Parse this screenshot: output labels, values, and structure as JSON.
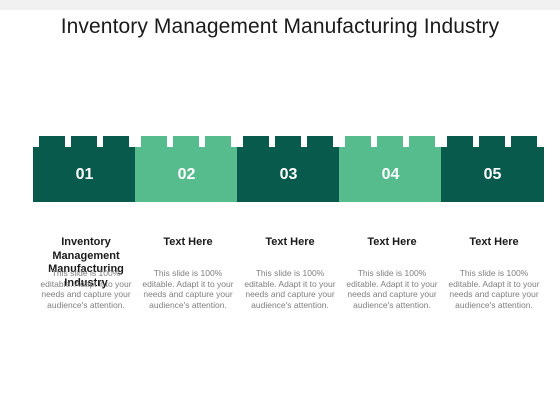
{
  "title": "Inventory Management Manufacturing Industry",
  "colors": {
    "dark": "#075a4c",
    "light": "#56bb8d"
  },
  "steps": [
    {
      "number": "01",
      "heading": "Inventory Management Manufacturing Industry",
      "text": "This slide is 100% editable. Adapt it to your needs and capture your audience's attention."
    },
    {
      "number": "02",
      "heading": "Text Here",
      "text": "This slide is 100% editable. Adapt it to your needs and capture your audience's attention."
    },
    {
      "number": "03",
      "heading": "Text Here",
      "text": "This slide is 100% editable. Adapt it to your needs and capture your audience's attention."
    },
    {
      "number": "04",
      "heading": "Text Here",
      "text": "This slide is 100% editable. Adapt it to your needs and capture your audience's attention."
    },
    {
      "number": "05",
      "heading": "Text Here",
      "text": "This slide is 100% editable. Adapt it to your needs and capture your audience's attention."
    }
  ]
}
